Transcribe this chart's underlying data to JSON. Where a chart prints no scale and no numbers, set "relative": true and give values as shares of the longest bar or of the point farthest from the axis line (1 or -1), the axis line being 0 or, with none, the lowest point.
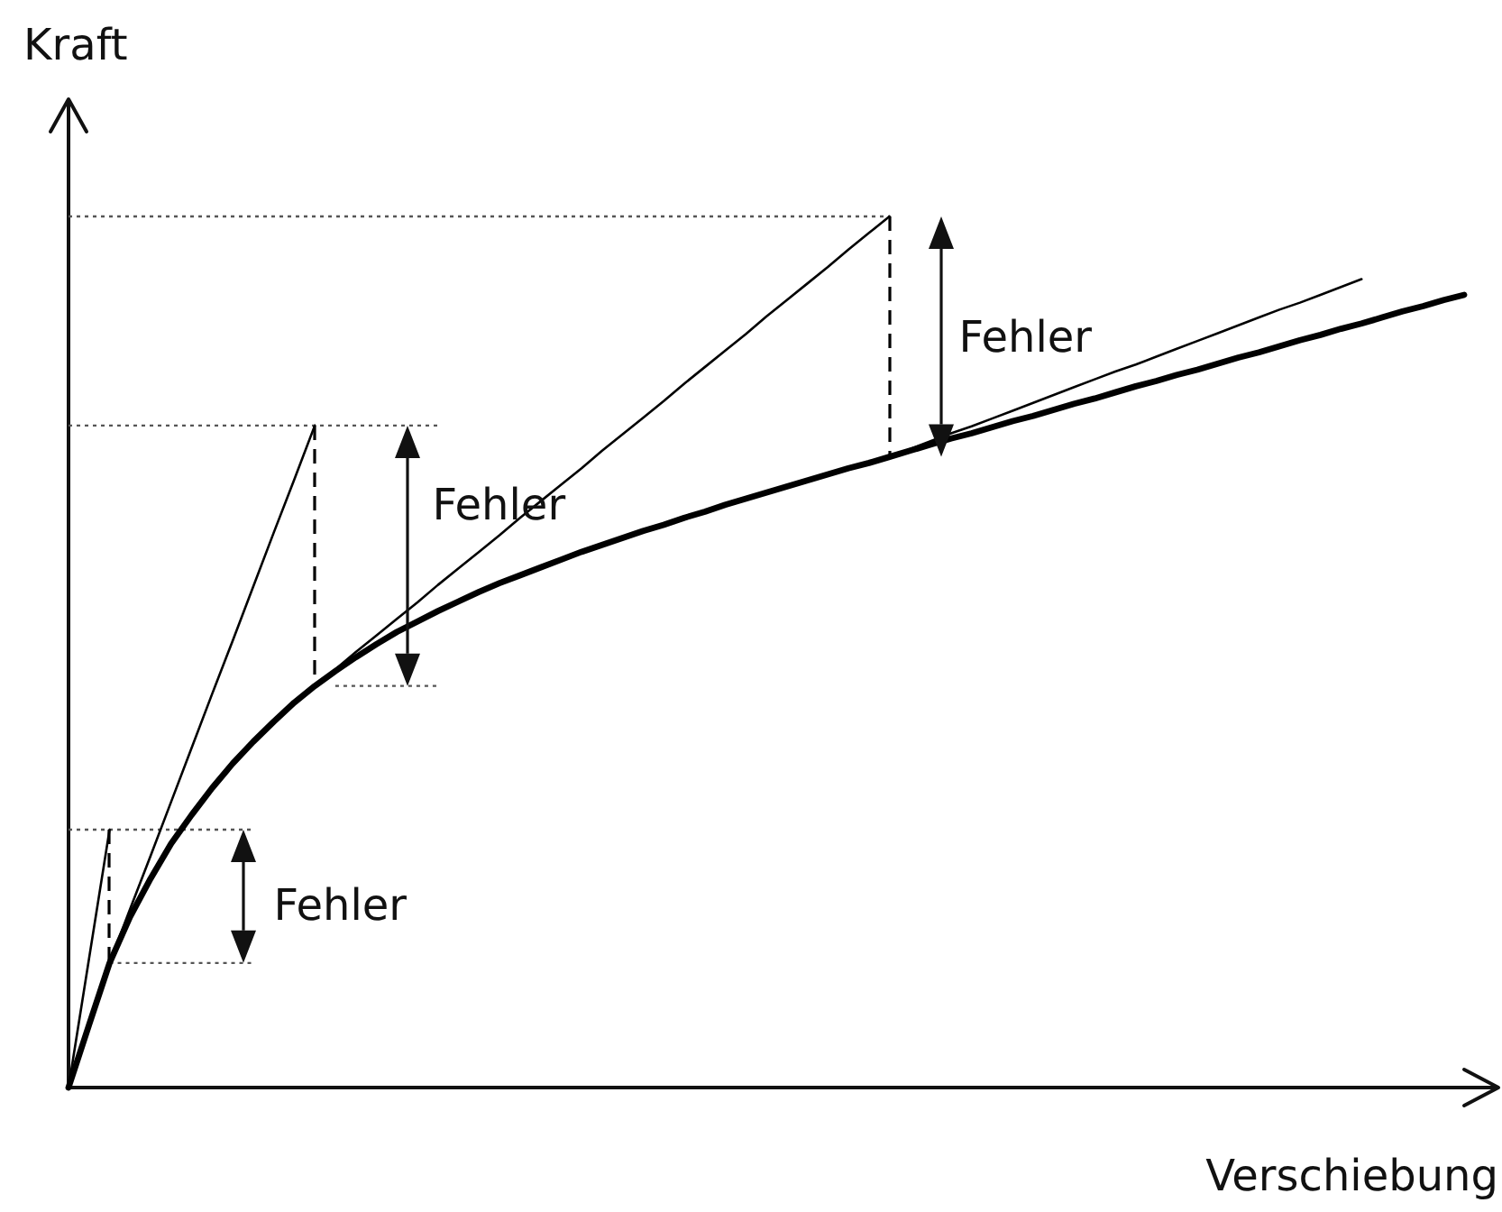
{
  "chart_data": {
    "type": "line",
    "relative": true,
    "xlabel": "Verschiebung",
    "ylabel": "Kraft",
    "annotations": [
      "Fehler",
      "Fehler",
      "Fehler"
    ],
    "categories": [
      null,
      null,
      null,
      null,
      null,
      null,
      null,
      null,
      null,
      null,
      null,
      null,
      null,
      null,
      null,
      null,
      null,
      null,
      null,
      null,
      null,
      null,
      null,
      null,
      null,
      null,
      null,
      null,
      null,
      null,
      null,
      null,
      null,
      null,
      null,
      null,
      null,
      null,
      null,
      null,
      null,
      null,
      null,
      null,
      null,
      null,
      null,
      null,
      null,
      null,
      null,
      null,
      null,
      null,
      null,
      null,
      null,
      null,
      null,
      null,
      null,
      null,
      null,
      null,
      null,
      null,
      null,
      null,
      null
    ],
    "series": [
      {
        "color": "#000000",
        "values": [
          0,
          0.072,
          0.143,
          0.196,
          0.24,
          0.28,
          0.313,
          0.344,
          0.372,
          0.397,
          0.42,
          0.442,
          0.461,
          0.478,
          0.494,
          0.509,
          0.523,
          0.535,
          0.547,
          0.558,
          0.569,
          0.579,
          0.588,
          0.597,
          0.606,
          0.615,
          0.623,
          0.631,
          0.639,
          0.646,
          0.654,
          0.661,
          0.669,
          0.676,
          0.683,
          0.69,
          0.697,
          0.704,
          0.711,
          0.717,
          0.724,
          0.731,
          0.738,
          0.745,
          0.751,
          0.758,
          0.765,
          0.771,
          0.778,
          0.785,
          0.791,
          0.798,
          0.805,
          0.811,
          0.818,
          0.824,
          0.831,
          0.838,
          0.844,
          0.851,
          0.858,
          0.864,
          0.871,
          0.877,
          0.884,
          0.891,
          0.897,
          0.904,
          0.91
        ]
      },
      {
        "color": "#000000",
        "values": [
          0,
          0.148,
          0.296,
          null,
          null,
          null,
          null,
          null,
          null,
          null,
          null,
          null,
          null,
          null,
          null,
          null,
          null,
          null,
          null,
          null,
          null,
          null,
          null,
          null,
          null,
          null,
          null,
          null,
          null,
          null,
          null,
          null,
          null,
          null,
          null,
          null,
          null,
          null,
          null,
          null,
          null,
          null,
          null,
          null,
          null,
          null,
          null,
          null,
          null,
          null,
          null,
          null,
          null,
          null,
          null,
          null,
          null,
          null,
          null,
          null,
          null,
          null,
          null,
          null,
          null,
          null,
          null,
          null,
          null
        ]
      },
      {
        "color": "#000000",
        "values": [
          null,
          null,
          0.143,
          0.205,
          0.266,
          0.328,
          0.39,
          0.452,
          0.513,
          0.575,
          0.637,
          0.698,
          0.76,
          null,
          null,
          null,
          null,
          null,
          null,
          null,
          null,
          null,
          null,
          null,
          null,
          null,
          null,
          null,
          null,
          null,
          null,
          null,
          null,
          null,
          null,
          null,
          null,
          null,
          null,
          null,
          null,
          null,
          null,
          null,
          null,
          null,
          null,
          null,
          null,
          null,
          null,
          null,
          null,
          null,
          null,
          null,
          null,
          null,
          null,
          null,
          null,
          null,
          null,
          null,
          null,
          null,
          null,
          null,
          null
        ]
      },
      {
        "color": "#000000",
        "values": [
          null,
          null,
          null,
          null,
          null,
          null,
          null,
          null,
          null,
          null,
          null,
          null,
          0.461,
          0.48,
          0.5,
          0.519,
          0.538,
          0.557,
          0.577,
          0.596,
          0.615,
          0.634,
          0.654,
          0.673,
          0.692,
          0.711,
          0.731,
          0.75,
          0.769,
          0.788,
          0.808,
          0.827,
          0.846,
          0.865,
          0.885,
          0.904,
          0.923,
          0.942,
          0.962,
          0.981,
          1,
          null,
          null,
          null,
          null,
          null,
          null,
          null,
          null,
          null,
          null,
          null,
          null,
          null,
          null,
          null,
          null,
          null,
          null,
          null,
          null,
          null,
          null,
          null,
          null,
          null,
          null,
          null,
          null
        ]
      },
      {
        "color": "#000000",
        "values": [
          null,
          null,
          null,
          null,
          null,
          null,
          null,
          null,
          null,
          null,
          null,
          null,
          null,
          null,
          null,
          null,
          null,
          null,
          null,
          null,
          null,
          null,
          null,
          null,
          null,
          null,
          null,
          null,
          null,
          null,
          null,
          null,
          null,
          null,
          null,
          null,
          null,
          null,
          null,
          null,
          0.724,
          0.733,
          0.742,
          0.751,
          0.759,
          0.768,
          0.777,
          0.786,
          0.795,
          0.804,
          0.813,
          0.822,
          0.83,
          0.839,
          0.848,
          0.857,
          0.866,
          0.875,
          0.884,
          0.893,
          0.901,
          0.91,
          0.919,
          0.928,
          null,
          null,
          null,
          null,
          null
        ]
      },
      {
        "color": "#555555",
        "line_style": "dotted",
        "values": [
          0.296,
          0.296,
          0.296,
          0.296,
          0.296,
          0.296,
          0.296,
          0.296,
          0.296,
          0.296,
          null,
          null,
          null,
          null,
          null,
          null,
          null,
          null,
          null,
          null,
          null,
          null,
          null,
          null,
          null,
          null,
          null,
          null,
          null,
          null,
          null,
          null,
          null,
          null,
          null,
          null,
          null,
          null,
          null,
          null,
          null,
          null,
          null,
          null,
          null,
          null,
          null,
          null,
          null,
          null,
          null,
          null,
          null,
          null,
          null,
          null,
          null,
          null,
          null,
          null,
          null,
          null,
          null,
          null,
          null,
          null,
          null,
          null,
          null
        ]
      },
      {
        "color": "#555555",
        "line_style": "dotted",
        "values": [
          null,
          null,
          0.143,
          0.143,
          0.143,
          0.143,
          0.143,
          0.143,
          0.143,
          0.143,
          null,
          null,
          null,
          null,
          null,
          null,
          null,
          null,
          null,
          null,
          null,
          null,
          null,
          null,
          null,
          null,
          null,
          null,
          null,
          null,
          null,
          null,
          null,
          null,
          null,
          null,
          null,
          null,
          null,
          null,
          null,
          null,
          null,
          null,
          null,
          null,
          null,
          null,
          null,
          null,
          null,
          null,
          null,
          null,
          null,
          null,
          null,
          null,
          null,
          null,
          null,
          null,
          null,
          null,
          null,
          null,
          null,
          null,
          null
        ]
      },
      {
        "color": "#555555",
        "line_style": "dotted",
        "values": [
          0.76,
          0.76,
          0.76,
          0.76,
          0.76,
          0.76,
          0.76,
          0.76,
          0.76,
          0.76,
          0.76,
          0.76,
          0.76,
          0.76,
          0.76,
          0.76,
          0.76,
          0.76,
          0.76,
          null,
          null,
          null,
          null,
          null,
          null,
          null,
          null,
          null,
          null,
          null,
          null,
          null,
          null,
          null,
          null,
          null,
          null,
          null,
          null,
          null,
          null,
          null,
          null,
          null,
          null,
          null,
          null,
          null,
          null,
          null,
          null,
          null,
          null,
          null,
          null,
          null,
          null,
          null,
          null,
          null,
          null,
          null,
          null,
          null,
          null,
          null,
          null,
          null,
          null
        ]
      },
      {
        "color": "#555555",
        "line_style": "dotted",
        "values": [
          null,
          null,
          null,
          null,
          null,
          null,
          null,
          null,
          null,
          null,
          null,
          null,
          null,
          0.461,
          0.461,
          0.461,
          0.461,
          0.461,
          0.461,
          null,
          null,
          null,
          null,
          null,
          null,
          null,
          null,
          null,
          null,
          null,
          null,
          null,
          null,
          null,
          null,
          null,
          null,
          null,
          null,
          null,
          null,
          null,
          null,
          null,
          null,
          null,
          null,
          null,
          null,
          null,
          null,
          null,
          null,
          null,
          null,
          null,
          null,
          null,
          null,
          null,
          null,
          null,
          null,
          null,
          null,
          null,
          null,
          null,
          null
        ]
      },
      {
        "color": "#555555",
        "line_style": "dotted",
        "values": [
          1,
          1,
          1,
          1,
          1,
          1,
          1,
          1,
          1,
          1,
          1,
          1,
          1,
          1,
          1,
          1,
          1,
          1,
          1,
          1,
          1,
          1,
          1,
          1,
          1,
          1,
          1,
          1,
          1,
          1,
          1,
          1,
          1,
          1,
          1,
          1,
          1,
          1,
          1,
          1,
          1,
          null,
          null,
          null,
          null,
          null,
          null,
          null,
          null,
          null,
          null,
          null,
          null,
          null,
          null,
          null,
          null,
          null,
          null,
          null,
          null,
          null,
          null,
          null,
          null,
          null,
          null,
          null,
          null
        ]
      }
    ],
    "grid": false,
    "legend": false,
    "tick_labels": false
  }
}
